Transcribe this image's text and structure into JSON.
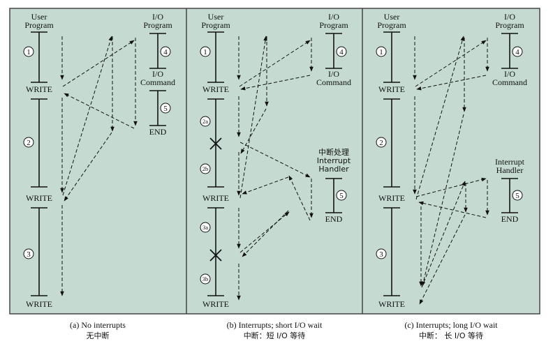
{
  "colors": {
    "panel_bg": "#c5dbd2",
    "border": "#3a3a3a",
    "line": "#111111"
  },
  "panels": [
    {
      "user_program": "User\nProgram",
      "io_program": "I/O\nProgram",
      "io_command": "I/O\nCommand",
      "end": "END",
      "writes": [
        "WRITE",
        "WRITE",
        "WRITE"
      ],
      "steps": [
        "1",
        "2",
        "3"
      ],
      "io_steps": [
        "4",
        "5"
      ],
      "caption_en": "(a) No interrupts",
      "caption_zh": "无中断"
    },
    {
      "user_program": "User\nProgram",
      "io_program": "I/O\nProgram",
      "io_command": "I/O\nCommand",
      "handler": "中断处理\nInterrupt\nHandler",
      "end": "END",
      "writes": [
        "WRITE",
        "WRITE",
        "WRITE"
      ],
      "steps": [
        "1",
        "2a",
        "2b",
        "3a",
        "3b"
      ],
      "io_steps": [
        "4",
        "5"
      ],
      "caption_en": "(b) Interrupts; short I/O wait",
      "caption_zh": "中断：短 I/O 等待"
    },
    {
      "user_program": "User\nProgram",
      "io_program": "I/O\nProgram",
      "io_command": "I/O\nCommand",
      "handler": "Interrupt\nHandler",
      "end": "END",
      "writes": [
        "WRITE",
        "WRITE",
        "WRITE"
      ],
      "steps": [
        "1",
        "2",
        "3"
      ],
      "io_steps": [
        "4",
        "5"
      ],
      "caption_en": "(c) Interrupts; long I/O wait",
      "caption_zh": "中断： 长 I/O 等待"
    }
  ]
}
